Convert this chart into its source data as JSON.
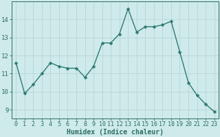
{
  "x": [
    0,
    1,
    2,
    3,
    4,
    5,
    6,
    7,
    8,
    9,
    10,
    11,
    12,
    13,
    14,
    15,
    16,
    17,
    18,
    19,
    20,
    21,
    22,
    23
  ],
  "y": [
    11.6,
    9.9,
    10.4,
    11.0,
    11.6,
    11.4,
    11.3,
    11.3,
    10.8,
    11.4,
    12.7,
    12.7,
    13.2,
    14.6,
    13.3,
    13.6,
    13.6,
    13.7,
    13.9,
    12.2,
    10.5,
    9.8,
    9.3,
    8.9
  ],
  "line_color": "#2d7a6e",
  "marker": "D",
  "marker_size": 2.5,
  "bg_color": "#ceeaea",
  "grid_color": "#b8d4d4",
  "xlabel": "Humidex (Indice chaleur)",
  "xlim": [
    -0.5,
    23.5
  ],
  "ylim": [
    8.5,
    15.0
  ],
  "yticks": [
    9,
    10,
    11,
    12,
    13,
    14
  ],
  "xticks": [
    0,
    1,
    2,
    3,
    4,
    5,
    6,
    7,
    8,
    9,
    10,
    11,
    12,
    13,
    14,
    15,
    16,
    17,
    18,
    19,
    20,
    21,
    22,
    23
  ],
  "tick_color": "#2d6e60",
  "xlabel_fontsize": 7,
  "tick_labelsize": 6,
  "ytick_labelsize": 6.5,
  "linewidth": 1.0
}
